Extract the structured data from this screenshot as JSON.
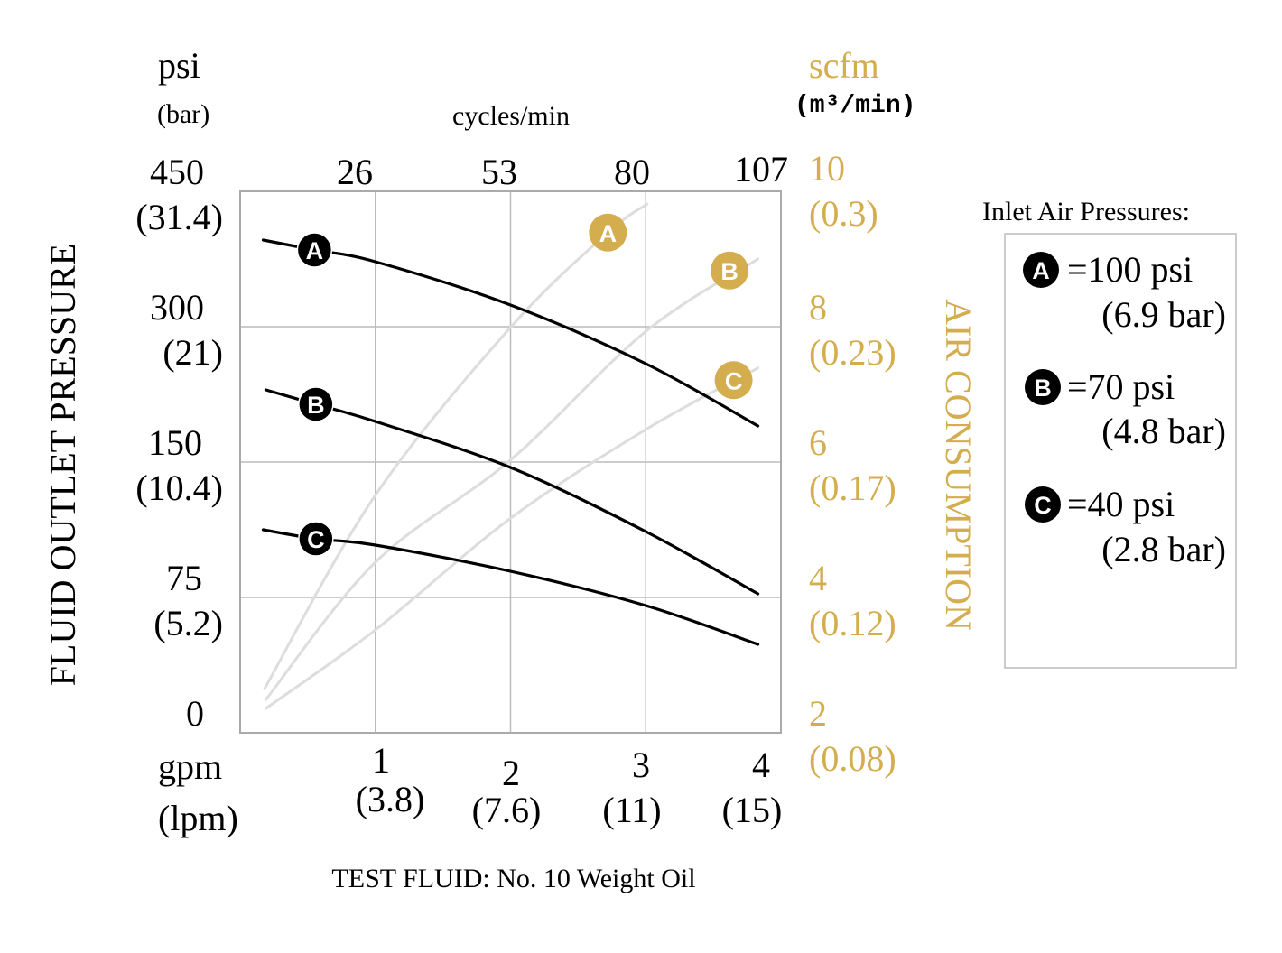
{
  "chart_data": {
    "type": "line",
    "title": "",
    "footnote": "TEST FLUID: No. 10 Weight Oil",
    "left_axis": {
      "unit": "psi",
      "unit_alt": "(bar)",
      "label": "FLUID OUTLET PRESSURE",
      "ticks": [
        {
          "v": "450",
          "alt": "(31.4)"
        },
        {
          "v": "300",
          "alt": "(21)"
        },
        {
          "v": "150",
          "alt": "(10.4)"
        },
        {
          "v": "75",
          "alt": "(5.2)"
        },
        {
          "v": "0",
          "alt": ""
        }
      ],
      "tick_values": [
        0,
        75,
        150,
        300,
        450
      ]
    },
    "right_axis": {
      "unit": "scfm",
      "unit_alt": "(m³/min)",
      "label": "AIR CONSUMPTION",
      "ticks": [
        {
          "v": "10",
          "alt": "(0.3)"
        },
        {
          "v": "8",
          "alt": "(0.23)"
        },
        {
          "v": "6",
          "alt": "(0.17)"
        },
        {
          "v": "4",
          "alt": "(0.12)"
        },
        {
          "v": "2",
          "alt": "(0.08)"
        }
      ],
      "ylim": [
        2,
        10
      ]
    },
    "bottom_axis": {
      "unit": "gpm",
      "unit_alt": "(lpm)",
      "ticks": [
        {
          "v": "1",
          "alt": "(3.8)"
        },
        {
          "v": "2",
          "alt": "(7.6)"
        },
        {
          "v": "3",
          "alt": "(11)"
        },
        {
          "v": "4",
          "alt": "(15)"
        }
      ],
      "xlim": [
        0,
        4
      ]
    },
    "top_axis": {
      "label": "cycles/min",
      "ticks": [
        "26",
        "53",
        "80",
        "107"
      ]
    },
    "grid": true,
    "colors": {
      "pressure": "#000000",
      "air": "#dddddd",
      "air_marker": "#d4ad4f",
      "frame": "#aaaaaa",
      "grid": "#bbbbbb"
    },
    "series": [
      {
        "name": "A",
        "kind": "fluid_pressure_psi",
        "x": [
          0.17,
          0.55,
          1,
          2,
          3,
          3.83
        ],
        "y": [
          396,
          385,
          372,
          324,
          259,
          190
        ],
        "label_at": [
          0.55,
          385
        ]
      },
      {
        "name": "B",
        "kind": "fluid_pressure_psi",
        "x": [
          0.19,
          0.56,
          1,
          2,
          3,
          3.83
        ],
        "y": [
          230,
          214,
          195,
          147,
          111.5,
          77
        ],
        "label_at": [
          0.56,
          214
        ]
      },
      {
        "name": "C",
        "kind": "fluid_pressure_psi",
        "x": [
          0.17,
          0.56,
          1,
          2,
          3,
          3.83
        ],
        "y": [
          112.5,
          107.5,
          104,
          89.5,
          70.5,
          49
        ],
        "label_at": [
          0.56,
          107.5
        ]
      },
      {
        "name": "A",
        "kind": "air_scfm",
        "x": [
          0.18,
          1,
          2,
          2.72,
          3.01
        ],
        "y": [
          2.65,
          5.51,
          7.99,
          9.39,
          9.81
        ],
        "label_at": [
          2.72,
          9.39
        ]
      },
      {
        "name": "B",
        "kind": "air_scfm",
        "x": [
          0.19,
          1,
          2,
          3,
          3.83
        ],
        "y": [
          2.49,
          4.52,
          6.03,
          7.93,
          9.0
        ],
        "label_at": [
          3.62,
          8.83
        ]
      },
      {
        "name": "C",
        "kind": "air_scfm",
        "x": [
          0.19,
          1,
          2,
          3,
          3.83
        ],
        "y": [
          2.36,
          3.52,
          5.17,
          6.48,
          7.39
        ],
        "label_at": [
          3.65,
          7.21
        ]
      }
    ],
    "legend": {
      "title": "Inlet Air Pressures:",
      "placement": "right",
      "items": [
        {
          "key": "A",
          "psi": "=100 psi",
          "bar": "(6.9 bar)"
        },
        {
          "key": "B",
          "psi": "=70 psi",
          "bar": "(4.8 bar)"
        },
        {
          "key": "C",
          "psi": "=40 psi",
          "bar": "(2.8 bar)"
        }
      ]
    }
  }
}
